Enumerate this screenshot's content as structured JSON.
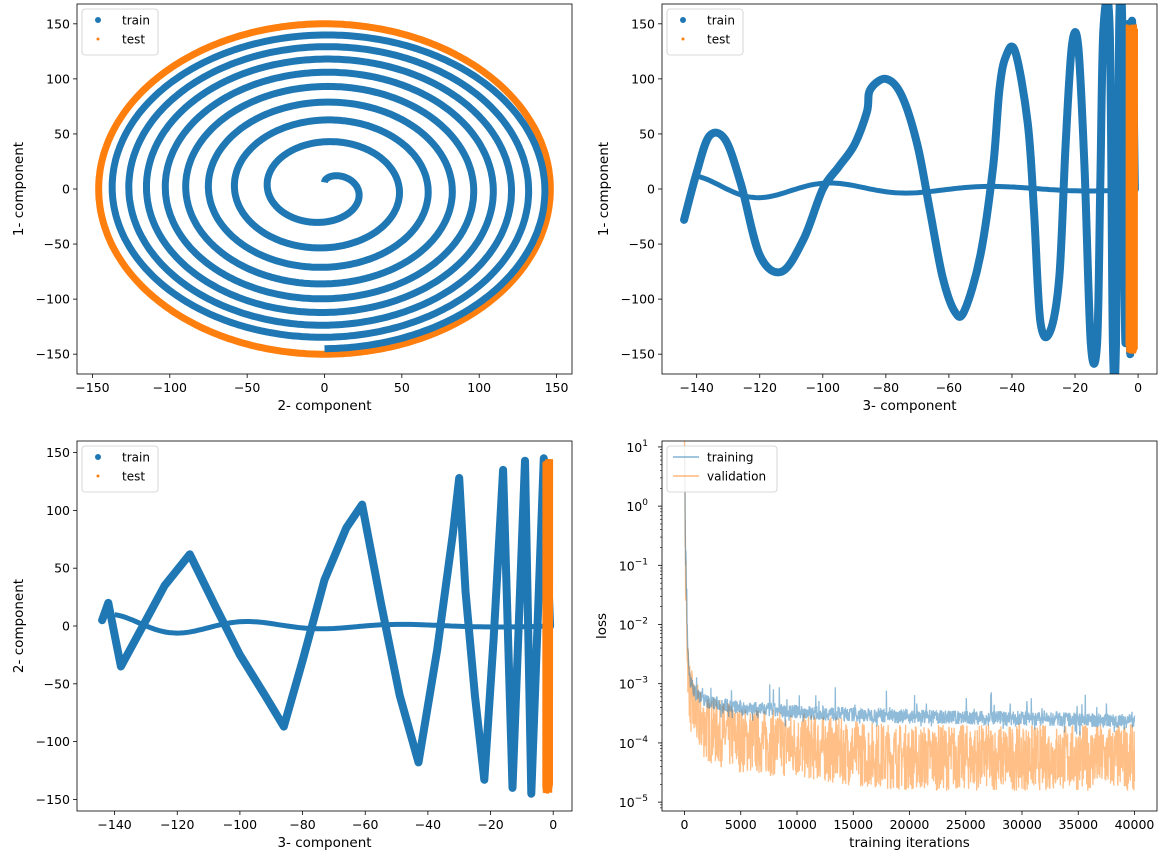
{
  "chart_data": [
    {
      "type": "scatter",
      "panel": "top-left",
      "xlabel": "2- component",
      "ylabel": "1- component",
      "xlim": [
        -160,
        160
      ],
      "ylim": [
        -168,
        168
      ],
      "xticks": [
        -150,
        -100,
        -50,
        0,
        50,
        100,
        150
      ],
      "yticks": [
        -150,
        -100,
        -50,
        0,
        50,
        100,
        150
      ],
      "grid": false,
      "legend": "top-left",
      "series": [
        {
          "name": "train",
          "color": "#1f77b4",
          "marker": "circle",
          "description_values": {
            "shape": "inward spiral",
            "center": [
              0,
              0
            ],
            "outer_radius": 145
          }
        },
        {
          "name": "test",
          "color": "#ff7f0e",
          "marker": "small-circle",
          "description_values": {
            "shape": "outer ring",
            "radius_x": 146,
            "radius_y": 150
          }
        }
      ]
    },
    {
      "type": "scatter",
      "panel": "top-right",
      "xlabel": "3- component",
      "ylabel": "1- component",
      "xlim": [
        -151,
        6
      ],
      "ylim": [
        -168,
        168
      ],
      "xticks": [
        -140,
        -120,
        -100,
        -80,
        -60,
        -40,
        -20,
        0
      ],
      "yticks": [
        -150,
        -100,
        -50,
        0,
        50,
        100,
        150
      ],
      "grid": false,
      "legend": "top-left",
      "series": [
        {
          "name": "train",
          "color": "#1f77b4",
          "x": [
            -144,
            -140,
            -136,
            -131,
            -126,
            -120,
            -113,
            -106,
            -100,
            -95,
            -90,
            -86,
            -85,
            -80,
            -75,
            -70,
            -66,
            -62,
            -58,
            -55,
            -50,
            -46,
            -44,
            -42,
            -39,
            -35,
            -33,
            -31,
            -28,
            -25,
            -23,
            -21,
            -19,
            -17,
            -15,
            -13,
            -12,
            -11,
            -9,
            -8,
            -7,
            -6,
            -5,
            -4,
            -3,
            -2.5,
            -2,
            -1
          ],
          "y": [
            -28,
            15,
            48,
            45,
            5,
            -60,
            -75,
            -45,
            0,
            20,
            40,
            70,
            90,
            100,
            85,
            40,
            -20,
            -80,
            -112,
            -110,
            -60,
            20,
            90,
            120,
            125,
            60,
            -20,
            -120,
            -130,
            -80,
            40,
            130,
            130,
            20,
            -140,
            -140,
            0,
            145,
            145,
            -140,
            -140,
            148,
            148,
            -140,
            150,
            -150,
            150,
            0
          ]
        },
        {
          "name": "test",
          "color": "#ff7f0e",
          "x": [
            -3.5,
            -3,
            -2.5,
            -2,
            -1.5,
            -1,
            -0.5
          ],
          "y": [
            -145,
            150,
            -150,
            152,
            -152,
            150,
            -148
          ]
        }
      ]
    },
    {
      "type": "scatter",
      "panel": "bottom-left",
      "xlabel": "3- component",
      "ylabel": "2- component",
      "xlim": [
        -152,
        6
      ],
      "ylim": [
        -160,
        160
      ],
      "xticks": [
        -140,
        -120,
        -100,
        -80,
        -60,
        -40,
        -20,
        0
      ],
      "yticks": [
        -150,
        -100,
        -50,
        0,
        50,
        100,
        150
      ],
      "grid": false,
      "legend": "top-left",
      "series": [
        {
          "name": "train",
          "color": "#1f77b4",
          "x": [
            -144,
            -142,
            -138,
            -132,
            -124,
            -116,
            -108,
            -100,
            -92,
            -86,
            -80,
            -73,
            -66,
            -61,
            -55,
            -49,
            -43,
            -37,
            -32,
            -30,
            -28,
            -25,
            -22,
            -19,
            -16,
            -13,
            -11,
            -9,
            -7,
            -5,
            -3,
            -1
          ],
          "y": [
            5,
            20,
            -35,
            -5,
            35,
            62,
            18,
            -25,
            -60,
            -87,
            -30,
            40,
            85,
            105,
            20,
            -60,
            -118,
            -20,
            80,
            128,
            30,
            -60,
            -133,
            -10,
            135,
            -140,
            0,
            143,
            -145,
            0,
            145,
            0
          ]
        },
        {
          "name": "test",
          "color": "#ff7f0e",
          "x": [
            -3,
            -2.5,
            -2,
            -1.5,
            -1,
            -0.5
          ],
          "y": [
            -145,
            145,
            -147,
            147,
            -145,
            145
          ]
        }
      ]
    },
    {
      "type": "line",
      "panel": "bottom-right",
      "xlabel": "training iterations",
      "ylabel": "loss",
      "yscale": "log",
      "xlim": [
        -2000,
        42000
      ],
      "ylim_log10": [
        -5.15,
        1.1
      ],
      "xticks": [
        0,
        5000,
        10000,
        15000,
        20000,
        25000,
        30000,
        35000,
        40000
      ],
      "yticks": [
        "10^-5",
        "10^-4",
        "10^-3",
        "10^-2",
        "10^-1",
        "10^0",
        "10^1"
      ],
      "grid": false,
      "legend": "top-left",
      "series": [
        {
          "name": "training",
          "color": "#1f77b4",
          "alpha": 0.5,
          "x": [
            0,
            100,
            300,
            500,
            1000,
            2000,
            5000,
            10000,
            15000,
            20000,
            25000,
            30000,
            35000,
            40000
          ],
          "y": [
            8,
            0.1,
            0.003,
            0.001,
            0.0006,
            0.00045,
            0.00035,
            0.0003,
            0.00027,
            0.00025,
            0.00024,
            0.00023,
            0.00022,
            0.00021
          ]
        },
        {
          "name": "validation",
          "color": "#ff7f0e",
          "alpha": 0.5,
          "x": [
            0,
            100,
            300,
            500,
            1000,
            2000,
            5000,
            10000,
            15000,
            20000,
            25000,
            30000,
            35000,
            40000
          ],
          "y": [
            8,
            0.05,
            0.002,
            0.0005,
            0.00025,
            0.00015,
            0.0001,
            8e-05,
            6e-05,
            5e-05,
            5e-05,
            5e-05,
            5e-05,
            5e-05
          ]
        }
      ]
    }
  ]
}
